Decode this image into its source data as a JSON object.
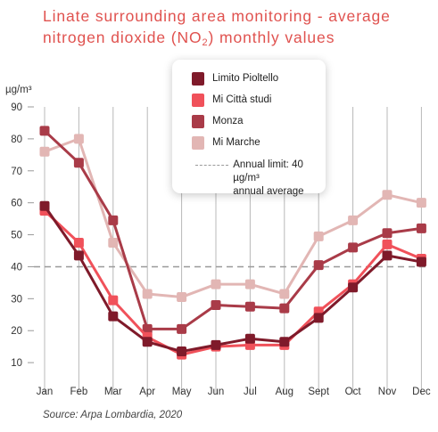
{
  "title": {
    "prefix": "Linate surrounding area monitoring - average nitrogen dioxide (NO",
    "subscript": "2",
    "suffix": ") monthly values"
  },
  "source": "Source: Arpa Lombardia, 2020",
  "legend": {
    "items": [
      {
        "label": "Limito Pioltello",
        "color": "#7f1a2a"
      },
      {
        "label": "Mi Città studi",
        "color": "#f0515a"
      },
      {
        "label": "Monza",
        "color": "#a93b48"
      },
      {
        "label": "Mi Marche",
        "color": "#e2b6b4"
      }
    ],
    "limit_line1": "Annual limit: 40 µg/m³",
    "limit_line2": "annual average"
  },
  "chart_data": {
    "type": "line",
    "categories": [
      "Jan",
      "Feb",
      "Mar",
      "Apr",
      "May",
      "Jun",
      "Jul",
      "Aug",
      "Sept",
      "Oct",
      "Nov",
      "Dec"
    ],
    "ylabel": "µg/m³",
    "ylim": [
      0,
      90
    ],
    "yticks": [
      10,
      20,
      30,
      40,
      50,
      60,
      70,
      80,
      90
    ],
    "grid": "vertical",
    "reference_line": {
      "value": 40,
      "label": "Annual limit: 40 µg/m³ annual average",
      "color": "#9a9a9a"
    },
    "series": [
      {
        "name": "Mi Marche",
        "color": "#e2b6b4",
        "values": [
          76,
          80,
          47.5,
          31.5,
          30.5,
          34.5,
          34.5,
          31.5,
          49.5,
          54.5,
          62.5,
          60
        ]
      },
      {
        "name": "Monza",
        "color": "#a93b48",
        "values": [
          82.5,
          72.5,
          54.5,
          20.5,
          20.5,
          28,
          27.5,
          27,
          40.5,
          46,
          50.5,
          52
        ]
      },
      {
        "name": "Mi Città studi",
        "color": "#f0515a",
        "values": [
          57.5,
          47.5,
          29.5,
          18,
          12.5,
          15,
          15.5,
          15.5,
          26,
          34.5,
          47,
          42.5
        ]
      },
      {
        "name": "Limito Pioltello",
        "color": "#7f1a2a",
        "values": [
          59,
          43.5,
          24.5,
          16.5,
          13.5,
          15.5,
          17.5,
          16.5,
          24,
          33.5,
          43.5,
          41.5
        ]
      }
    ]
  }
}
